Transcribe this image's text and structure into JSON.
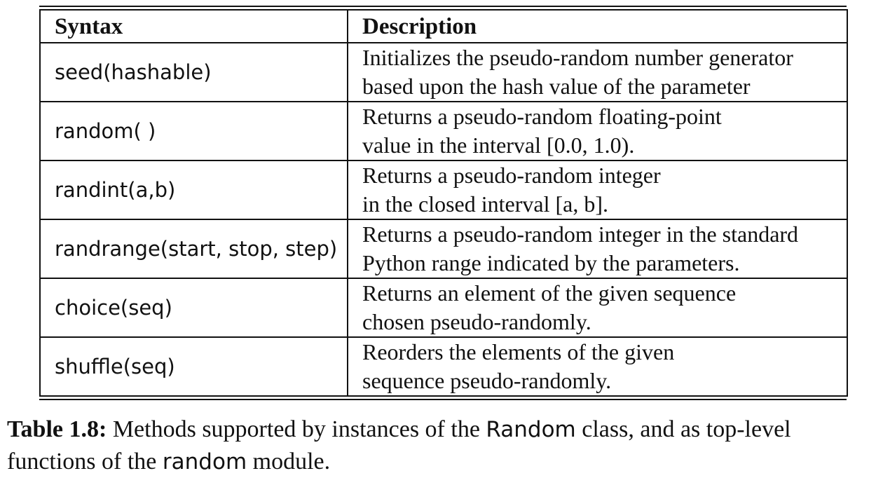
{
  "table": {
    "headers": {
      "syntax": "Syntax",
      "description": "Description"
    },
    "rows": [
      {
        "syntax": "seed(hashable)",
        "desc_line1": "Initializes the pseudo-random number generator",
        "desc_line2": "based upon the hash value of the parameter"
      },
      {
        "syntax": "random( )",
        "desc_line1": "Returns a pseudo-random floating-point",
        "desc_line2": "value in the interval [0.0, 1.0)."
      },
      {
        "syntax": "randint(a,b)",
        "desc_line1": "Returns a pseudo-random integer",
        "desc_line2": "in the closed interval [a, b]."
      },
      {
        "syntax": "randrange(start, stop, step)",
        "desc_line1": "Returns a pseudo-random integer in the standard",
        "desc_line2": "Python range indicated by the parameters."
      },
      {
        "syntax": "choice(seq)",
        "desc_line1": "Returns an element of the given sequence",
        "desc_line2": "chosen pseudo-randomly."
      },
      {
        "syntax": "shuffle(seq)",
        "desc_line1": "Reorders the elements of the given",
        "desc_line2": "sequence pseudo-randomly."
      }
    ]
  },
  "caption": {
    "label": "Table 1.8:",
    "text_before": " Methods supported by instances of the ",
    "code_class": "Random",
    "text_middle": " class, and as top-level functions of the ",
    "code_module": "random",
    "text_after": " module."
  }
}
